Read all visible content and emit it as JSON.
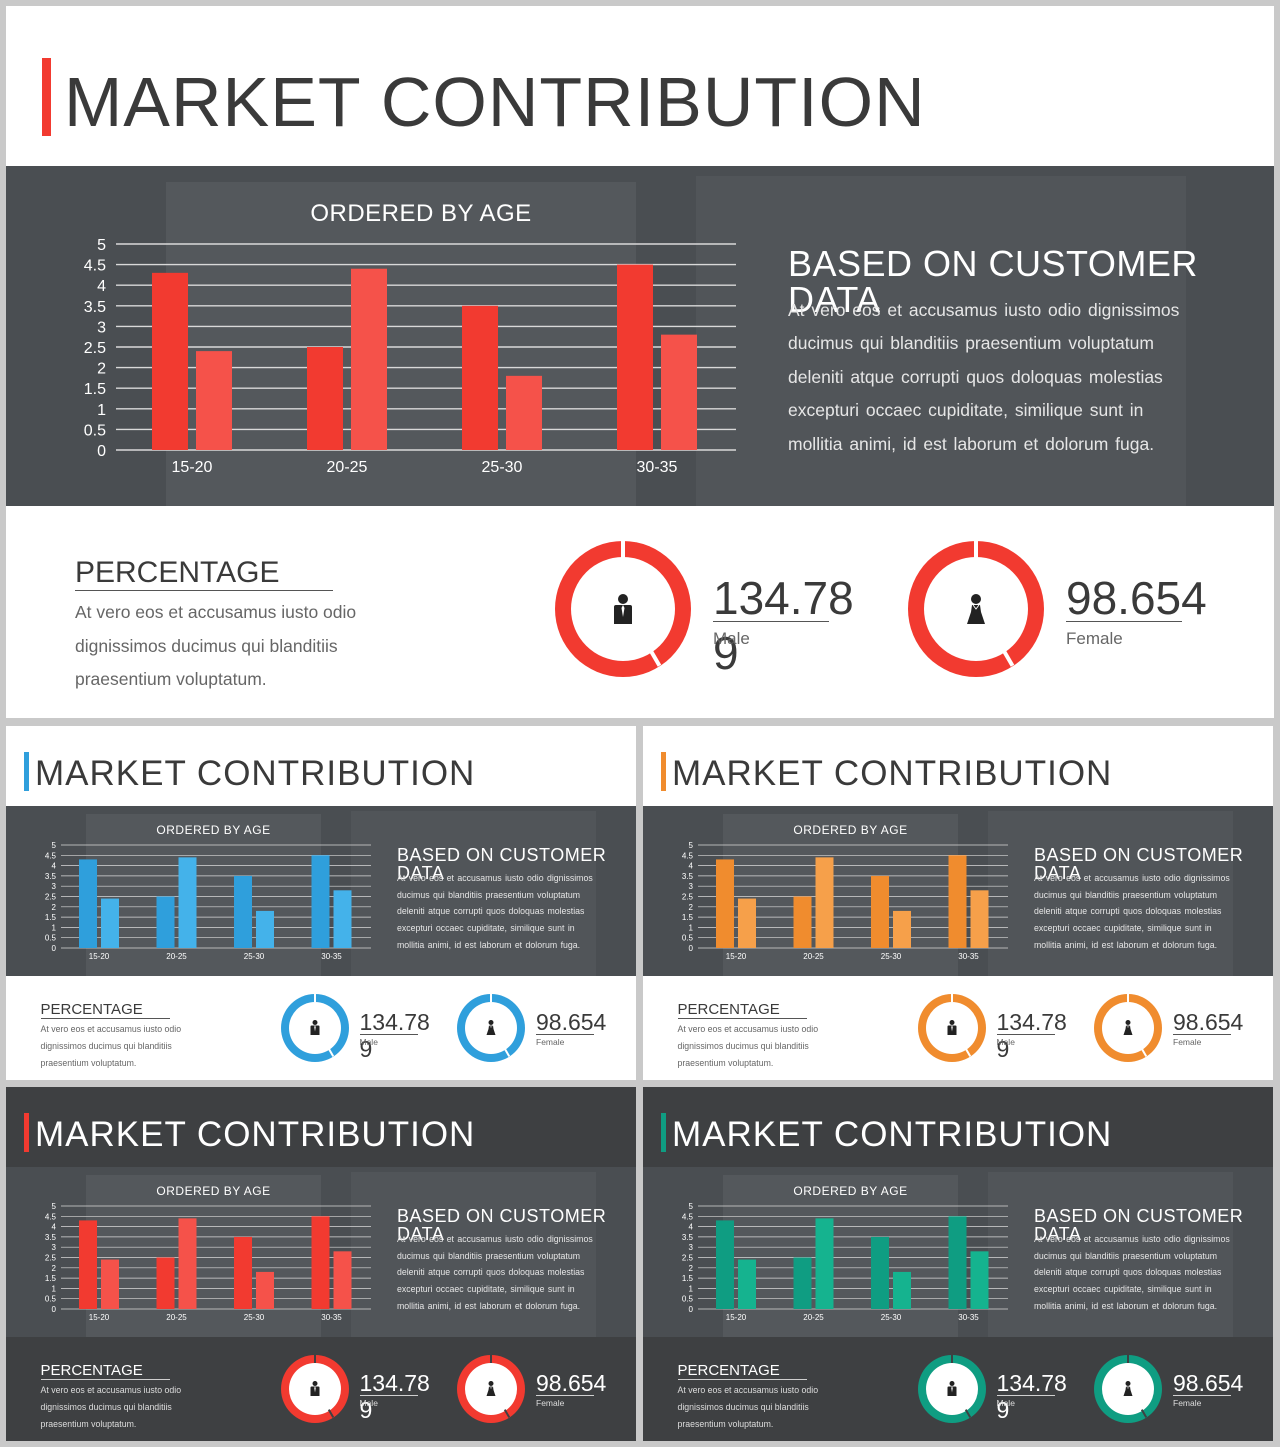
{
  "slides": [
    {
      "title": "MARKET CONTRIBUTION",
      "chart_title": "ORDERED BY AGE",
      "customer_heading": "BASED ON CUSTOMER DATA",
      "customer_text": "At vero eos et accusamus iusto odio dignissimos ducimus qui blanditiis praesentium voluptatum deleniti atque corrupti quos doloquas molestias excepturi occaec cupiditate, similique sunt in mollitia animi, id est laborum et dolorum fuga.",
      "percentage_heading": "PERCENTAGE",
      "percentage_text": "At vero eos et accusamus iusto odio dignissimos ducimus qui blanditiis praesentium voluptatum.",
      "male_value": "134.78",
      "male_value_overflow": "9",
      "male_label": "Male",
      "female_value": "98.654",
      "female_label": "Female",
      "accent": "#f23a30",
      "accent2": "#f5524a",
      "theme": "light"
    },
    {
      "title": "MARKET CONTRIBUTION",
      "chart_title": "ORDERED BY AGE",
      "customer_heading": "BASED ON CUSTOMER DATA",
      "customer_text": "At vero eos et accusamus iusto odio dignissimos ducimus qui blanditiis praesentium voluptatum deleniti atque corrupti quos doloquas molestias excepturi occaec cupiditate, similique sunt in mollitia animi, id est laborum et dolorum fuga.",
      "percentage_heading": "PERCENTAGE",
      "percentage_text": "At vero eos et accusamus iusto odio dignissimos ducimus qui blanditiis praesentium voluptatum.",
      "male_value": "134.78",
      "male_value_overflow": "9",
      "male_label": "Male",
      "female_value": "98.654",
      "female_label": "Female",
      "accent": "#2f9fdc",
      "accent2": "#44b2ea",
      "theme": "light"
    },
    {
      "title": "MARKET CONTRIBUTION",
      "chart_title": "ORDERED BY AGE",
      "customer_heading": "BASED ON CUSTOMER DATA",
      "customer_text": "At vero eos et accusamus iusto odio dignissimos ducimus qui blanditiis praesentium voluptatum deleniti atque corrupti quos doloquas molestias excepturi occaec cupiditate, similique sunt in mollitia animi, id est laborum et dolorum fuga.",
      "percentage_heading": "PERCENTAGE",
      "percentage_text": "At vero eos et accusamus iusto odio dignissimos ducimus qui blanditiis praesentium voluptatum.",
      "male_value": "134.78",
      "male_value_overflow": "9",
      "male_label": "Male",
      "female_value": "98.654",
      "female_label": "Female",
      "accent": "#f08c2e",
      "accent2": "#f6a04a",
      "theme": "light"
    },
    {
      "title": "MARKET CONTRIBUTION",
      "chart_title": "ORDERED BY AGE",
      "customer_heading": "BASED ON CUSTOMER DATA",
      "customer_text": "At vero eos et accusamus iusto odio dignissimos ducimus qui blanditiis praesentium voluptatum deleniti atque corrupti quos doloquas molestias excepturi occaec cupiditate, similique sunt in mollitia animi, id est laborum et dolorum fuga.",
      "percentage_heading": "PERCENTAGE",
      "percentage_text": "At vero eos et accusamus iusto odio dignissimos ducimus qui blanditiis praesentium voluptatum.",
      "male_value": "134.78",
      "male_value_overflow": "9",
      "male_label": "Male",
      "female_value": "98.654",
      "female_label": "Female",
      "accent": "#f23a30",
      "accent2": "#f5524a",
      "theme": "dark"
    },
    {
      "title": "MARKET CONTRIBUTION",
      "chart_title": "ORDERED BY AGE",
      "customer_heading": "BASED ON CUSTOMER DATA",
      "customer_text": "At vero eos et accusamus iusto odio dignissimos ducimus qui blanditiis praesentium voluptatum deleniti atque corrupti quos doloquas molestias excepturi occaec cupiditate, similique sunt in mollitia animi, id est laborum et dolorum fuga.",
      "percentage_heading": "PERCENTAGE",
      "percentage_text": "At vero eos et accusamus iusto odio dignissimos ducimus qui blanditiis praesentium voluptatum.",
      "male_value": "134.78",
      "male_value_overflow": "9",
      "male_label": "Male",
      "female_value": "98.654",
      "female_label": "Female",
      "accent": "#0f9d82",
      "accent2": "#15b38f",
      "theme": "dark"
    }
  ],
  "chart_data": {
    "type": "bar",
    "title": "ORDERED BY AGE",
    "categories": [
      "15-20",
      "20-25",
      "25-30",
      "30-35"
    ],
    "series": [
      {
        "values": [
          4.3,
          2.5,
          3.5,
          4.5
        ]
      },
      {
        "values": [
          2.4,
          4.4,
          1.8,
          2.8
        ]
      }
    ],
    "ylim": [
      0,
      5
    ],
    "yticks": [
      "0",
      "0.5",
      "1",
      "1.5",
      "2",
      "2.5",
      "3",
      "3.5",
      "4",
      "4.5",
      "5"
    ],
    "grid": true
  }
}
